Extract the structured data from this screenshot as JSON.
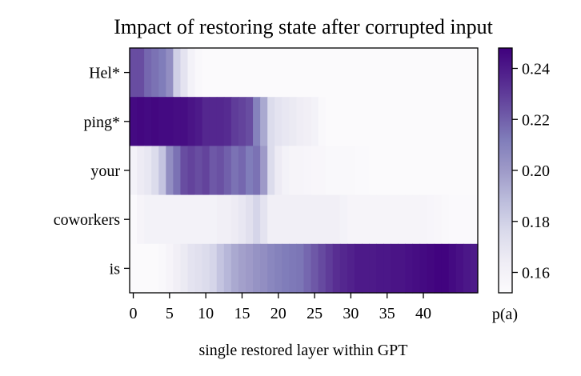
{
  "chart_data": {
    "type": "heatmap",
    "title": "Impact of restoring state after corrupted input",
    "xlabel": "single restored layer within GPT",
    "x_tick_labels": [
      "0",
      "5",
      "10",
      "15",
      "20",
      "25",
      "30",
      "35",
      "40"
    ],
    "x_ticks": [
      0,
      5,
      10,
      15,
      20,
      25,
      30,
      35,
      40
    ],
    "x_range": [
      0,
      47
    ],
    "rows": [
      "Hel*",
      "ping*",
      "your",
      "coworkers",
      "is"
    ],
    "colorbar": {
      "label": "p(a)",
      "min": 0.152,
      "max": 0.248,
      "ticks": [
        0.16,
        0.18,
        0.2,
        0.22,
        0.24
      ],
      "tick_labels": [
        "0.16",
        "0.18",
        "0.20",
        "0.22",
        "0.24"
      ],
      "colormap": "Purples",
      "colors": [
        "#fcfbfd",
        "#efedf5",
        "#dadaeb",
        "#bcbddc",
        "#9e9ac8",
        "#807dba",
        "#6a51a3",
        "#54278f",
        "#3f007d"
      ]
    },
    "values": [
      [
        0.225,
        0.225,
        0.218,
        0.215,
        0.212,
        0.205,
        0.18,
        0.17,
        0.16,
        0.155,
        0.153,
        0.153,
        0.153,
        0.153,
        0.153,
        0.153,
        0.153,
        0.153,
        0.153,
        0.153,
        0.153,
        0.153,
        0.153,
        0.153,
        0.153,
        0.153,
        0.153,
        0.153,
        0.153,
        0.153,
        0.153,
        0.153,
        0.153,
        0.153,
        0.153,
        0.153,
        0.153,
        0.153,
        0.153,
        0.153,
        0.153,
        0.153,
        0.153,
        0.153,
        0.153,
        0.153,
        0.153,
        0.153
      ],
      [
        0.245,
        0.246,
        0.245,
        0.246,
        0.245,
        0.245,
        0.244,
        0.244,
        0.242,
        0.24,
        0.236,
        0.236,
        0.236,
        0.235,
        0.23,
        0.228,
        0.225,
        0.21,
        0.195,
        0.175,
        0.17,
        0.168,
        0.166,
        0.164,
        0.162,
        0.16,
        0.155,
        0.153,
        0.153,
        0.153,
        0.153,
        0.153,
        0.153,
        0.153,
        0.153,
        0.153,
        0.153,
        0.153,
        0.153,
        0.153,
        0.153,
        0.153,
        0.153,
        0.153,
        0.153,
        0.153,
        0.153,
        0.153
      ],
      [
        0.16,
        0.165,
        0.168,
        0.175,
        0.185,
        0.205,
        0.215,
        0.225,
        0.228,
        0.225,
        0.228,
        0.222,
        0.224,
        0.22,
        0.215,
        0.218,
        0.212,
        0.215,
        0.2,
        0.175,
        0.165,
        0.16,
        0.158,
        0.158,
        0.157,
        0.156,
        0.156,
        0.155,
        0.155,
        0.155,
        0.155,
        0.154,
        0.154,
        0.153,
        0.153,
        0.153,
        0.153,
        0.153,
        0.153,
        0.153,
        0.153,
        0.153,
        0.153,
        0.153,
        0.153,
        0.153,
        0.153,
        0.153
      ],
      [
        0.154,
        0.158,
        0.16,
        0.16,
        0.16,
        0.16,
        0.16,
        0.16,
        0.16,
        0.16,
        0.16,
        0.16,
        0.162,
        0.162,
        0.165,
        0.168,
        0.172,
        0.178,
        0.17,
        0.162,
        0.162,
        0.162,
        0.162,
        0.162,
        0.162,
        0.162,
        0.162,
        0.162,
        0.162,
        0.16,
        0.158,
        0.158,
        0.158,
        0.158,
        0.158,
        0.158,
        0.158,
        0.158,
        0.158,
        0.158,
        0.158,
        0.157,
        0.156,
        0.155,
        0.154,
        0.154,
        0.154,
        0.154
      ],
      [
        0.153,
        0.153,
        0.153,
        0.153,
        0.155,
        0.158,
        0.162,
        0.166,
        0.17,
        0.172,
        0.175,
        0.178,
        0.185,
        0.19,
        0.195,
        0.198,
        0.2,
        0.203,
        0.205,
        0.208,
        0.21,
        0.212,
        0.213,
        0.214,
        0.218,
        0.222,
        0.226,
        0.23,
        0.234,
        0.236,
        0.238,
        0.24,
        0.24,
        0.24,
        0.241,
        0.241,
        0.242,
        0.242,
        0.243,
        0.244,
        0.245,
        0.246,
        0.247,
        0.247,
        0.245,
        0.243,
        0.241,
        0.24
      ]
    ]
  }
}
